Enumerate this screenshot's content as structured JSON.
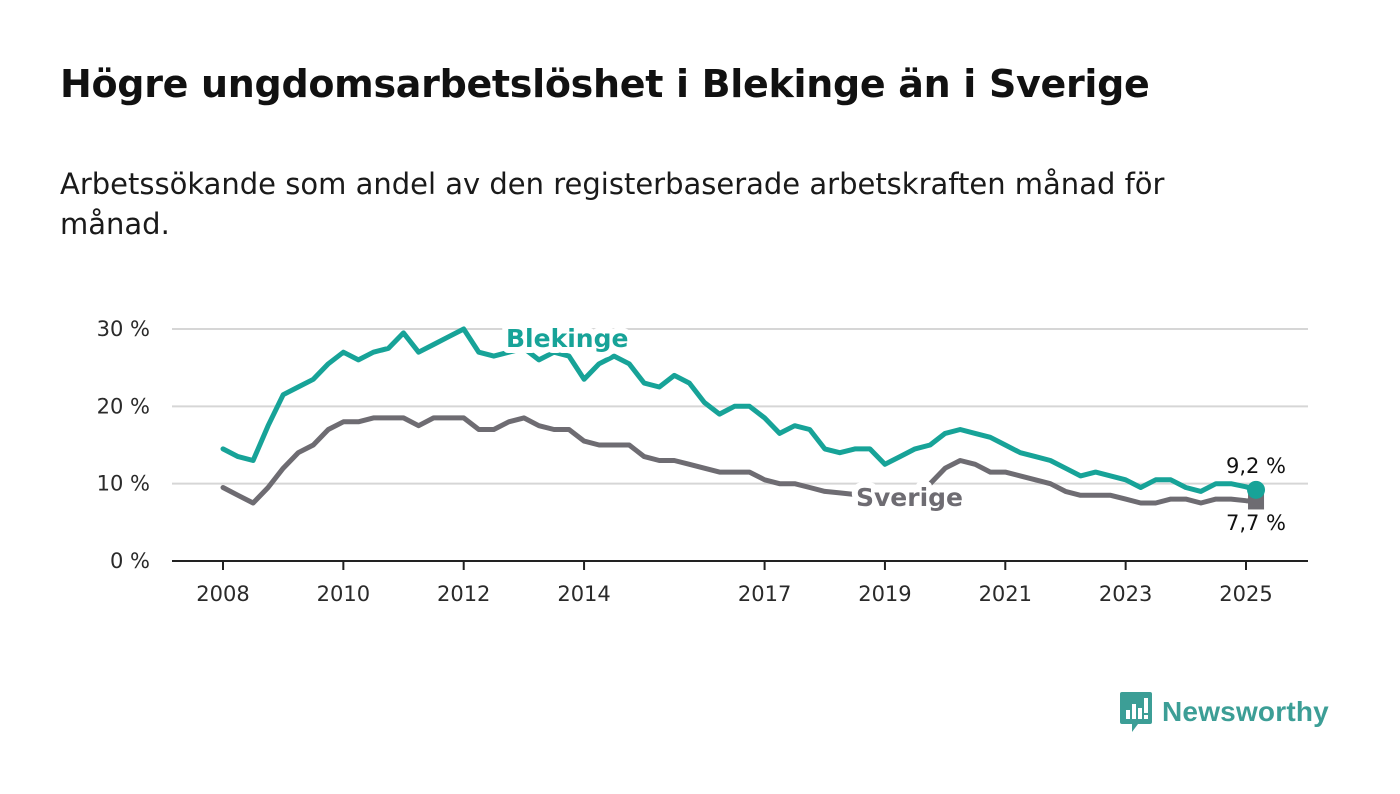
{
  "title": "Högre ungdomsarbetslöshet i Blekinge än i Sverige",
  "subtitle": "Arbetssökande som andel av den registerbaserade arbetskraften månad för månad.",
  "brand": {
    "name": "Newsworthy",
    "icon": "newsworthy-logo-icon",
    "color": "#3c9e96"
  },
  "colors": {
    "Blekinge": "#17a398",
    "Sverige": "#6e6c72",
    "grid": "#d6d6d6",
    "axis": "#222222"
  },
  "chart_data": {
    "type": "line",
    "title": "Högre ungdomsarbetslöshet i Blekinge än i Sverige",
    "subtitle": "Arbetssökande som andel av den registerbaserade arbetskraften månad för månad.",
    "xlabel": "",
    "ylabel": "",
    "ylim": [
      0,
      30
    ],
    "xlim": [
      2008,
      2025
    ],
    "x_ticks": [
      "2008",
      "2010",
      "2012",
      "2014",
      "2017",
      "2019",
      "2021",
      "2023",
      "2025"
    ],
    "y_ticks": [
      "0 %",
      "10 %",
      "20 %",
      "30 %"
    ],
    "grid": "horizontal",
    "legend": "inline labels",
    "x": [
      "2008-01",
      "2008-04",
      "2008-07",
      "2008-10",
      "2009-01",
      "2009-04",
      "2009-07",
      "2009-10",
      "2010-01",
      "2010-04",
      "2010-07",
      "2010-10",
      "2011-01",
      "2011-04",
      "2011-07",
      "2011-10",
      "2012-01",
      "2012-04",
      "2012-07",
      "2012-10",
      "2013-01",
      "2013-04",
      "2013-07",
      "2013-10",
      "2014-01",
      "2014-04",
      "2014-07",
      "2014-10",
      "2015-01",
      "2015-04",
      "2015-07",
      "2015-10",
      "2016-01",
      "2016-04",
      "2016-07",
      "2016-10",
      "2017-01",
      "2017-04",
      "2017-07",
      "2017-10",
      "2018-01",
      "2018-04",
      "2018-07",
      "2018-10",
      "2019-01",
      "2019-04",
      "2019-07",
      "2019-10",
      "2020-01",
      "2020-04",
      "2020-07",
      "2020-10",
      "2021-01",
      "2021-04",
      "2021-07",
      "2021-10",
      "2022-01",
      "2022-04",
      "2022-07",
      "2022-10",
      "2023-01",
      "2023-04",
      "2023-07",
      "2023-10",
      "2024-01",
      "2024-04",
      "2024-07",
      "2024-10",
      "2025-01",
      "2025-03"
    ],
    "series": [
      {
        "name": "Blekinge",
        "values": [
          14.5,
          13.5,
          13.0,
          17.5,
          21.5,
          22.5,
          23.5,
          25.5,
          27.0,
          26.0,
          27.0,
          27.5,
          29.5,
          27.0,
          28.0,
          29.0,
          30.0,
          27.0,
          26.5,
          27.0,
          27.5,
          26.0,
          27.0,
          26.5,
          23.5,
          25.5,
          26.5,
          25.5,
          23.0,
          22.5,
          24.0,
          23.0,
          20.5,
          19.0,
          20.0,
          20.0,
          18.5,
          16.5,
          17.5,
          17.0,
          14.5,
          14.0,
          14.5,
          14.5,
          12.5,
          13.5,
          14.5,
          15.0,
          16.5,
          17.0,
          16.5,
          16.0,
          15.0,
          14.0,
          13.5,
          13.0,
          12.0,
          11.0,
          11.5,
          11.0,
          10.5,
          9.5,
          10.5,
          10.5,
          9.5,
          9.0,
          10.0,
          10.0,
          9.6,
          9.2
        ]
      },
      {
        "name": "Sverige",
        "values": [
          9.5,
          8.5,
          7.5,
          9.5,
          12.0,
          14.0,
          15.0,
          17.0,
          18.0,
          18.0,
          18.5,
          18.5,
          18.5,
          17.5,
          18.5,
          18.5,
          18.5,
          17.0,
          17.0,
          18.0,
          18.5,
          17.5,
          17.0,
          17.0,
          15.5,
          15.0,
          15.0,
          15.0,
          13.5,
          13.0,
          13.0,
          12.5,
          12.0,
          11.5,
          11.5,
          11.5,
          10.5,
          10.0,
          10.0,
          9.5,
          9.0,
          8.8,
          8.6,
          8.4,
          8.3,
          8.5,
          9.0,
          10.0,
          12.0,
          13.0,
          12.5,
          11.5,
          11.5,
          11.0,
          10.5,
          10.0,
          9.0,
          8.5,
          8.5,
          8.5,
          8.0,
          7.5,
          7.5,
          8.0,
          8.0,
          7.5,
          8.0,
          8.0,
          7.8,
          7.7
        ]
      }
    ],
    "end_labels": [
      "9,2 %",
      "7,7 %"
    ]
  }
}
